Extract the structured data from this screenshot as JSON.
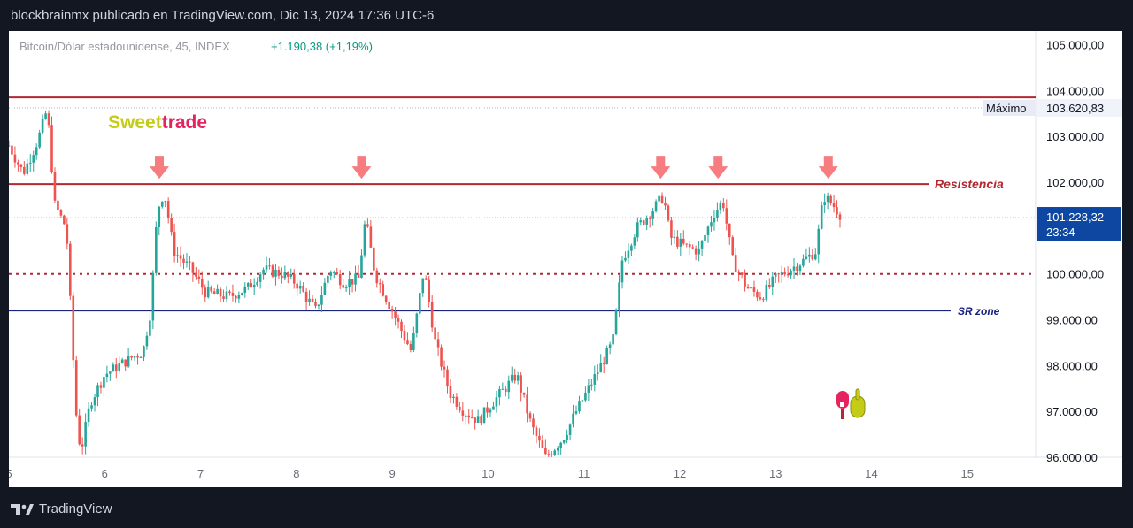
{
  "header": {
    "publish_line": "blockbrainmx publicado en TradingView.com, Dic 13, 2024 17:36 UTC-6"
  },
  "legend": {
    "symbol": "Bitcoin/Dólar estadounidense, 45, INDEX",
    "change": "+1.190,38 (+1,19%)"
  },
  "brand": {
    "sweet": "Sweet",
    "trade": "trade"
  },
  "footer": {
    "logo_text": "TradingView"
  },
  "colors": {
    "up": "#26a69a",
    "down": "#ef5350",
    "resistance": "#b22833",
    "sr_zone": "#1a237e",
    "arrow": "#f77c80",
    "current_price_bg": "#0d47a1"
  },
  "chart_data": {
    "type": "candlestick",
    "title": "Bitcoin/Dólar estadounidense, 45, INDEX",
    "ylim": [
      96000,
      105300
    ],
    "y_ticks": [
      "105.000,00",
      "104.000,00",
      "103.000,00",
      "102.000,00",
      "100.000,00",
      "99.000,00",
      "98.000,00",
      "97.000,00",
      "96.000,00"
    ],
    "x_ticks": [
      "5",
      "6",
      "7",
      "8",
      "9",
      "10",
      "11",
      "12",
      "13",
      "14",
      "15"
    ],
    "x_tick_values": [
      5,
      6,
      7,
      8,
      9,
      10,
      11,
      12,
      13,
      14,
      15
    ],
    "xlim": [
      5.0,
      15.75
    ],
    "current_price": {
      "value": 101228.32,
      "label": "101.228,32",
      "countdown": "23:34"
    },
    "max_marker": {
      "value": 103620.83,
      "label_name": "Máximo",
      "label_value": "103.620,83"
    },
    "levels": [
      {
        "name": "Resistencia",
        "value": 101960,
        "style": "solid"
      },
      {
        "name": "",
        "value": 103850,
        "style": "solid"
      },
      {
        "name": "",
        "value": 100000,
        "style": "dotted"
      },
      {
        "name": "SR zone",
        "value": 99200,
        "style": "solid"
      }
    ],
    "arrows_x": [
      6.57,
      8.68,
      11.8,
      12.4,
      13.55
    ],
    "price_path": [
      [
        5.0,
        102800
      ],
      [
        5.15,
        102200
      ],
      [
        5.3,
        102900
      ],
      [
        5.4,
        103600
      ],
      [
        5.48,
        101500
      ],
      [
        5.6,
        101000
      ],
      [
        5.7,
        97000
      ],
      [
        5.75,
        96100
      ],
      [
        5.85,
        97200
      ],
      [
        6.0,
        97800
      ],
      [
        6.15,
        98000
      ],
      [
        6.3,
        98200
      ],
      [
        6.4,
        98300
      ],
      [
        6.48,
        99200
      ],
      [
        6.55,
        101400
      ],
      [
        6.62,
        101800
      ],
      [
        6.72,
        100500
      ],
      [
        6.9,
        100100
      ],
      [
        7.05,
        99600
      ],
      [
        7.3,
        99500
      ],
      [
        7.5,
        99700
      ],
      [
        7.65,
        100100
      ],
      [
        7.85,
        100000
      ],
      [
        8.0,
        99800
      ],
      [
        8.2,
        99200
      ],
      [
        8.35,
        100100
      ],
      [
        8.5,
        99800
      ],
      [
        8.65,
        99900
      ],
      [
        8.72,
        101200
      ],
      [
        8.82,
        100000
      ],
      [
        9.0,
        99200
      ],
      [
        9.2,
        98300
      ],
      [
        9.33,
        100100
      ],
      [
        9.45,
        98500
      ],
      [
        9.6,
        97400
      ],
      [
        9.75,
        97000
      ],
      [
        9.9,
        96800
      ],
      [
        10.05,
        97200
      ],
      [
        10.3,
        97800
      ],
      [
        10.45,
        96700
      ],
      [
        10.6,
        96000
      ],
      [
        10.78,
        96400
      ],
      [
        10.92,
        97000
      ],
      [
        11.1,
        97700
      ],
      [
        11.3,
        98500
      ],
      [
        11.4,
        100300
      ],
      [
        11.55,
        101000
      ],
      [
        11.72,
        101400
      ],
      [
        11.83,
        101700
      ],
      [
        11.9,
        100800
      ],
      [
        12.05,
        100600
      ],
      [
        12.2,
        100500
      ],
      [
        12.35,
        101300
      ],
      [
        12.45,
        101600
      ],
      [
        12.55,
        100300
      ],
      [
        12.7,
        99700
      ],
      [
        12.85,
        99500
      ],
      [
        13.0,
        99900
      ],
      [
        13.15,
        100100
      ],
      [
        13.3,
        100300
      ],
      [
        13.42,
        100500
      ],
      [
        13.5,
        101700
      ],
      [
        13.6,
        101500
      ],
      [
        13.7,
        101228
      ]
    ]
  }
}
